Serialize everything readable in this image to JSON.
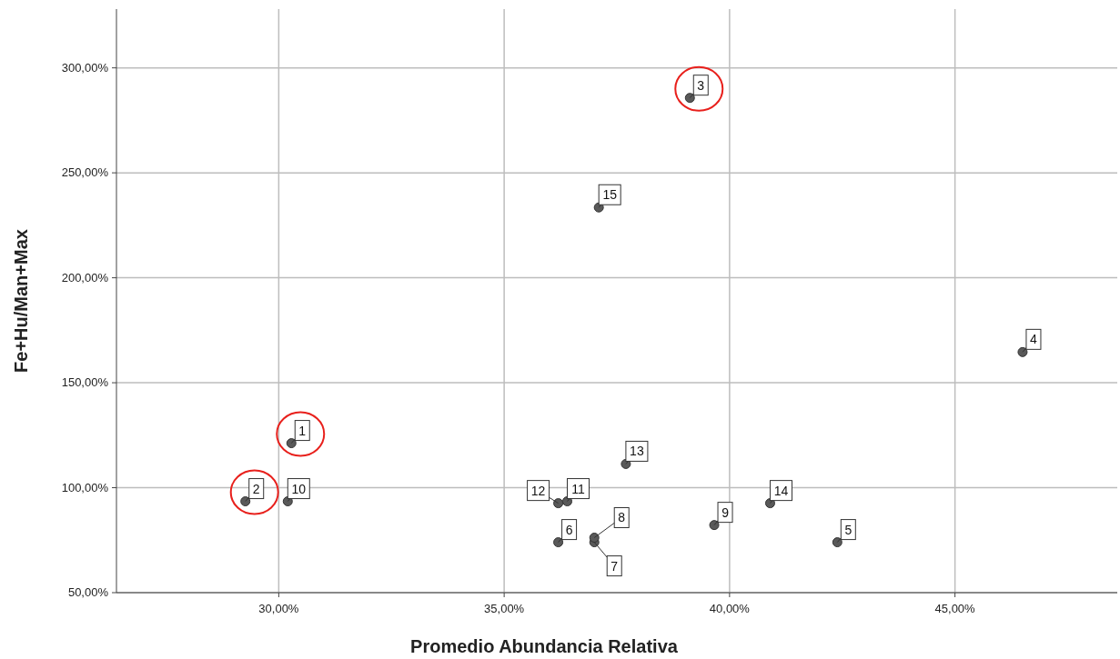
{
  "chart_data": {
    "type": "scatter",
    "xlabel": "Promedio Abundancia Relativa",
    "ylabel": "Fe+Hu/Man+Max",
    "x": [
      30.28,
      29.26,
      39.12,
      46.5,
      42.39,
      36.2,
      37.0,
      37.0,
      39.66,
      30.2,
      36.4,
      36.2,
      37.7,
      40.9,
      37.1
    ],
    "values": [
      121.2,
      93.5,
      285.7,
      164.6,
      74,
      74,
      74,
      76.2,
      82.2,
      93.5,
      93.5,
      92.6,
      111.3,
      92.6,
      233.5
    ],
    "color": "#595959",
    "marker": "circle",
    "grid": true,
    "xlim": [
      26.4,
      48.6
    ],
    "ylim": [
      50,
      328
    ],
    "xticks": [
      {
        "value": 30,
        "label": "30,00%"
      },
      {
        "value": 35,
        "label": "35,00%"
      },
      {
        "value": 40,
        "label": "40,00%"
      },
      {
        "value": 45,
        "label": "45,00%"
      }
    ],
    "yticks": [
      {
        "value": 50,
        "label": "50,00%"
      },
      {
        "value": 100,
        "label": "100,00%"
      },
      {
        "value": 150,
        "label": "150,00%"
      },
      {
        "value": 200,
        "label": "200,00%"
      },
      {
        "value": 250,
        "label": "250,00%"
      },
      {
        "value": 300,
        "label": "300,00%"
      }
    ],
    "annotations": [
      {
        "text": "1",
        "x": 30.28,
        "y": 121.2
      },
      {
        "text": "2",
        "x": 29.26,
        "y": 93.5
      },
      {
        "text": "3",
        "x": 39.12,
        "y": 285.7
      },
      {
        "text": "4",
        "x": 46.5,
        "y": 164.6
      },
      {
        "text": "5",
        "x": 42.39,
        "y": 74
      },
      {
        "text": "6",
        "x": 36.2,
        "y": 74
      },
      {
        "text": "7",
        "x": 37.0,
        "y": 74
      },
      {
        "text": "8",
        "x": 37.0,
        "y": 76.2
      },
      {
        "text": "9",
        "x": 39.66,
        "y": 82.2
      },
      {
        "text": "10",
        "x": 30.2,
        "y": 93.5
      },
      {
        "text": "11",
        "x": 36.4,
        "y": 93.5
      },
      {
        "text": "12",
        "x": 36.2,
        "y": 92.6
      },
      {
        "text": "13",
        "x": 37.7,
        "y": 111.3
      },
      {
        "text": "14",
        "x": 40.9,
        "y": 92.6
      },
      {
        "text": "15",
        "x": 37.1,
        "y": 233.5
      }
    ]
  }
}
